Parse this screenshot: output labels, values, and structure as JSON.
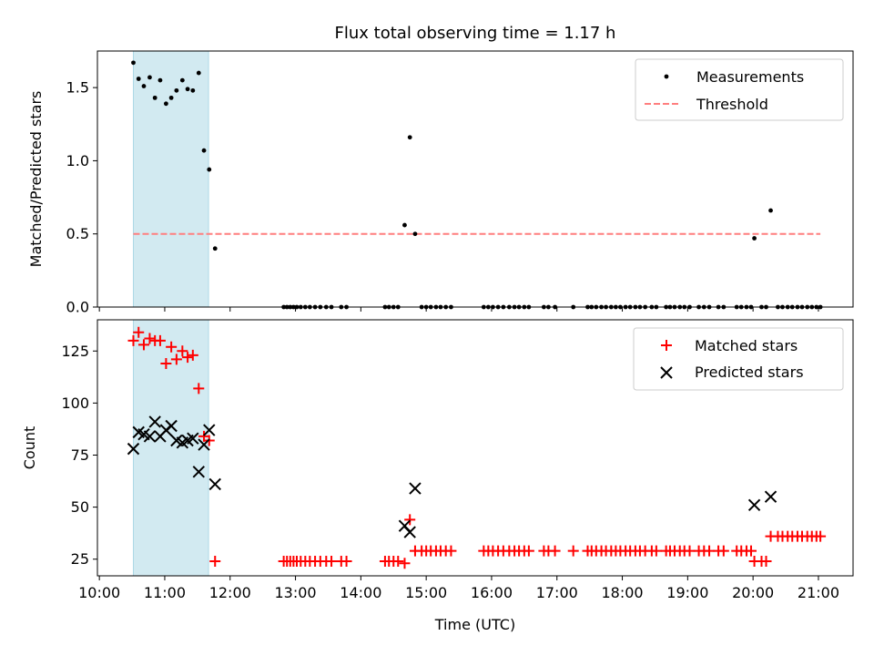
{
  "figure": {
    "title": "Flux total observing time = 1.17 h",
    "xlabel": "Time (UTC)"
  },
  "colors": {
    "shade": "#add8e6",
    "threshold": "#ff7f7f",
    "matched": "#ff0000",
    "predicted": "#000000",
    "measurement": "#000000"
  },
  "chart_data": [
    {
      "type": "scatter",
      "name": "ratio",
      "ylabel": "Matched/Predicted stars",
      "xlim": [
        9.97,
        21.53
      ],
      "ylim": [
        0,
        1.75
      ],
      "yticks": [
        0.0,
        0.5,
        1.0,
        1.5
      ],
      "ytick_labels": [
        "0.0",
        "0.5",
        "1.0",
        "1.5"
      ],
      "shaded_span": [
        10.52,
        11.67
      ],
      "threshold": {
        "value": 0.5,
        "x_range": [
          10.52,
          21.03
        ]
      },
      "legend": {
        "position": "top-right",
        "entries": [
          "Measurements",
          "Threshold"
        ]
      },
      "series": [
        {
          "name": "Measurements",
          "x": [
            10.52,
            10.6,
            10.68,
            10.77,
            10.85,
            10.93,
            11.02,
            11.1,
            11.18,
            11.27,
            11.35,
            11.43,
            11.52,
            11.6,
            11.68,
            11.77,
            12.82,
            12.87,
            12.92,
            12.97,
            13.02,
            13.08,
            13.15,
            13.22,
            13.3,
            13.38,
            13.47,
            13.55,
            13.7,
            13.78,
            14.37,
            14.43,
            14.5,
            14.57,
            14.67,
            14.75,
            14.83,
            14.93,
            15.0,
            15.07,
            15.15,
            15.22,
            15.3,
            15.38,
            15.88,
            15.95,
            16.02,
            16.1,
            16.18,
            16.27,
            16.35,
            16.42,
            16.5,
            16.57,
            16.8,
            16.87,
            16.97,
            17.25,
            17.47,
            17.53,
            17.6,
            17.68,
            17.75,
            17.83,
            17.9,
            17.97,
            18.05,
            18.12,
            18.2,
            18.27,
            18.35,
            18.45,
            18.52,
            18.67,
            18.73,
            18.8,
            18.88,
            18.95,
            19.03,
            19.17,
            19.25,
            19.33,
            19.47,
            19.55,
            19.75,
            19.82,
            19.9,
            19.97,
            20.02,
            20.13,
            20.2,
            20.27,
            20.38,
            20.45,
            20.53,
            20.6,
            20.68,
            20.75,
            20.83,
            20.9,
            20.97,
            21.03
          ],
          "y": [
            1.67,
            1.56,
            1.51,
            1.57,
            1.43,
            1.55,
            1.39,
            1.43,
            1.48,
            1.55,
            1.49,
            1.48,
            1.6,
            1.07,
            0.94,
            0.4,
            0,
            0,
            0,
            0,
            0,
            0,
            0,
            0,
            0,
            0,
            0,
            0,
            0,
            0,
            0,
            0,
            0,
            0,
            0.56,
            1.16,
            0.5,
            0,
            0,
            0,
            0,
            0,
            0,
            0,
            0,
            0,
            0,
            0,
            0,
            0,
            0,
            0,
            0,
            0,
            0,
            0,
            0,
            0,
            0,
            0,
            0,
            0,
            0,
            0,
            0,
            0,
            0,
            0,
            0,
            0,
            0,
            0,
            0,
            0,
            0,
            0,
            0,
            0,
            0,
            0,
            0,
            0,
            0,
            0,
            0,
            0,
            0,
            0,
            0.47,
            0,
            0,
            0.66,
            0,
            0,
            0,
            0,
            0,
            0,
            0,
            0,
            0,
            0
          ]
        }
      ]
    },
    {
      "type": "scatter",
      "name": "counts",
      "ylabel": "Count",
      "xlim": [
        9.97,
        21.53
      ],
      "ylim": [
        17,
        140
      ],
      "yticks": [
        25,
        50,
        75,
        100,
        125
      ],
      "ytick_labels": [
        "25",
        "50",
        "75",
        "100",
        "125"
      ],
      "xticks": [
        10,
        11,
        12,
        13,
        14,
        15,
        16,
        17,
        18,
        19,
        20,
        21
      ],
      "xtick_labels": [
        "10:00",
        "11:00",
        "12:00",
        "13:00",
        "14:00",
        "15:00",
        "16:00",
        "17:00",
        "18:00",
        "19:00",
        "20:00",
        "21:00"
      ],
      "shaded_span": [
        10.52,
        11.67
      ],
      "legend": {
        "position": "top-right",
        "entries": [
          "Matched stars",
          "Predicted stars"
        ]
      },
      "series": [
        {
          "name": "Matched stars",
          "marker": "plus",
          "x": [
            10.52,
            10.6,
            10.68,
            10.77,
            10.85,
            10.93,
            11.02,
            11.1,
            11.18,
            11.27,
            11.35,
            11.43,
            11.52,
            11.6,
            11.68,
            11.77,
            12.82,
            12.87,
            12.92,
            12.97,
            13.02,
            13.08,
            13.15,
            13.22,
            13.3,
            13.38,
            13.47,
            13.55,
            13.7,
            13.78,
            14.37,
            14.43,
            14.5,
            14.57,
            14.67,
            14.75,
            14.83,
            14.93,
            15.0,
            15.07,
            15.15,
            15.22,
            15.3,
            15.38,
            15.88,
            15.95,
            16.02,
            16.1,
            16.18,
            16.27,
            16.35,
            16.42,
            16.5,
            16.57,
            16.8,
            16.87,
            16.97,
            17.25,
            17.47,
            17.53,
            17.6,
            17.68,
            17.75,
            17.83,
            17.9,
            17.97,
            18.05,
            18.12,
            18.2,
            18.27,
            18.35,
            18.45,
            18.52,
            18.67,
            18.73,
            18.8,
            18.88,
            18.95,
            19.03,
            19.17,
            19.25,
            19.33,
            19.47,
            19.55,
            19.75,
            19.82,
            19.9,
            19.97,
            20.02,
            20.13,
            20.2,
            20.27,
            20.38,
            20.45,
            20.53,
            20.6,
            20.68,
            20.75,
            20.83,
            20.9,
            20.97,
            21.03
          ],
          "y": [
            130,
            134,
            128,
            131,
            130,
            130,
            119,
            127,
            121,
            125,
            122,
            123,
            107,
            84,
            82,
            24,
            24,
            24,
            24,
            24,
            24,
            24,
            24,
            24,
            24,
            24,
            24,
            24,
            24,
            24,
            24,
            24,
            24,
            24,
            23,
            44,
            29,
            29,
            29,
            29,
            29,
            29,
            29,
            29,
            29,
            29,
            29,
            29,
            29,
            29,
            29,
            29,
            29,
            29,
            29,
            29,
            29,
            29,
            29,
            29,
            29,
            29,
            29,
            29,
            29,
            29,
            29,
            29,
            29,
            29,
            29,
            29,
            29,
            29,
            29,
            29,
            29,
            29,
            29,
            29,
            29,
            29,
            29,
            29,
            29,
            29,
            29,
            29,
            24,
            24,
            24,
            36,
            36,
            36,
            36,
            36,
            36,
            36,
            36,
            36,
            36,
            36
          ]
        },
        {
          "name": "Predicted stars",
          "marker": "x",
          "x": [
            10.52,
            10.6,
            10.68,
            10.77,
            10.85,
            10.93,
            11.02,
            11.1,
            11.18,
            11.27,
            11.35,
            11.43,
            11.52,
            11.6,
            11.68,
            11.77,
            14.67,
            14.75,
            14.83,
            20.02,
            20.27
          ],
          "y": [
            78,
            86,
            85,
            84,
            91,
            84,
            87,
            89,
            82,
            81,
            82,
            83,
            67,
            80,
            87,
            61,
            41,
            38,
            59,
            51,
            55
          ]
        }
      ]
    }
  ]
}
